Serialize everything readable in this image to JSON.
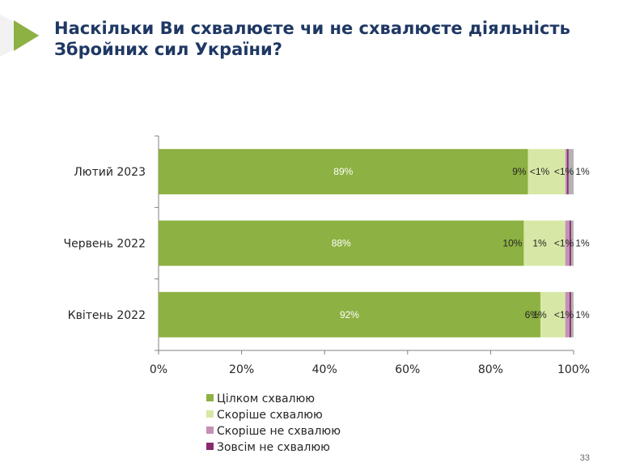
{
  "slide": {
    "title": "Наскільки Ви схвалюєте чи не схвалюєте діяльність Збройних сил України?",
    "page_number": "33"
  },
  "colors": {
    "title": "#1f3864",
    "arrow": "#8db142"
  },
  "chart_data": {
    "type": "bar",
    "orientation": "horizontal",
    "stacked": true,
    "categories": [
      "Лютий 2023",
      "Червень 2022",
      "Квітень 2022"
    ],
    "series": [
      {
        "name": "Цілком схвалюю",
        "color": "#8db142",
        "values": [
          89,
          88,
          92
        ],
        "labels": [
          "89%",
          "88%",
          "92%"
        ]
      },
      {
        "name": "Скоріше схвалюю",
        "color": "#d7e8a6",
        "values": [
          9,
          10,
          6
        ],
        "labels": [
          "9%",
          "10%",
          "6%"
        ]
      },
      {
        "name": "Скоріше не схвалюю",
        "color": "#c491b6",
        "values": [
          0.4,
          1,
          1
        ],
        "labels": [
          "<1%",
          "1%",
          "1%"
        ]
      },
      {
        "name": "Зовсім не схвалюю",
        "color": "#8a2a6c",
        "values": [
          0.4,
          0.4,
          0.4
        ],
        "labels": [
          "<1%",
          "<1%",
          "<1%"
        ]
      },
      {
        "name": "",
        "color": "#b3b3b3",
        "values": [
          1.2,
          0.6,
          0.6
        ],
        "labels": [
          "1%",
          "1%",
          "1%"
        ]
      }
    ],
    "xlim": [
      0,
      100
    ],
    "x_ticks": [
      "0%",
      "20%",
      "40%",
      "60%",
      "80%",
      "100%"
    ],
    "legend_position": "bottom-left",
    "grid": false
  }
}
